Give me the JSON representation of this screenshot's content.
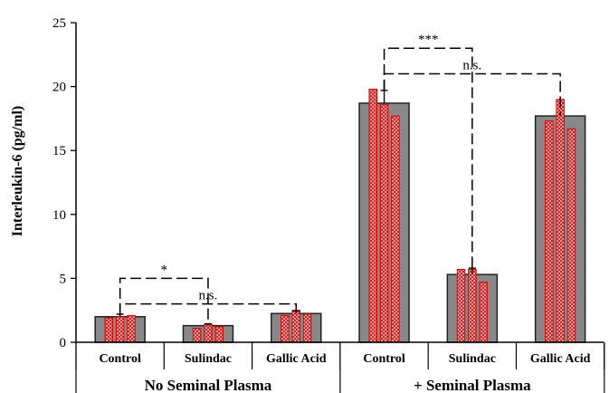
{
  "chart_data": {
    "type": "bar",
    "ylabel": "Interleukin-6 (pg/ml)",
    "ylim": [
      0,
      25
    ],
    "yticks": [
      0,
      5,
      10,
      15,
      20,
      25
    ],
    "grid": false,
    "groups": [
      {
        "label": "No Seminal Plasma",
        "categories": [
          {
            "label": "Control",
            "mean": 2.0,
            "error": 0.2,
            "replicates": [
              1.9,
              2.0,
              2.1
            ]
          },
          {
            "label": "Sulindac",
            "mean": 1.3,
            "error": 0.15,
            "replicates": [
              1.1,
              1.4,
              1.2
            ]
          },
          {
            "label": "Gallic Acid",
            "mean": 2.25,
            "error": 0.2,
            "replicates": [
              2.1,
              2.5,
              2.2
            ]
          }
        ]
      },
      {
        "label": "+ Seminal Plasma",
        "categories": [
          {
            "label": "Control",
            "mean": 18.7,
            "error": 1.0,
            "replicates": [
              19.8,
              18.6,
              17.7
            ]
          },
          {
            "label": "Sulindac",
            "mean": 5.3,
            "error": 0.5,
            "replicates": [
              5.7,
              5.7,
              4.7
            ]
          },
          {
            "label": "Gallic Acid",
            "mean": 17.7,
            "error": 0.0,
            "replicates": [
              17.3,
              19.0,
              16.7
            ]
          }
        ]
      }
    ],
    "comparisons": [
      {
        "from": [
          0,
          0
        ],
        "to": [
          0,
          1
        ],
        "label": "*",
        "y": 5.0
      },
      {
        "from": [
          0,
          0
        ],
        "to": [
          0,
          2
        ],
        "label": "n.s.",
        "y": 3.0
      },
      {
        "from": [
          1,
          0
        ],
        "to": [
          1,
          1
        ],
        "label": "***",
        "y": 23.0
      },
      {
        "from": [
          1,
          0
        ],
        "to": [
          1,
          2
        ],
        "label": "n.s.",
        "y": 21.0
      }
    ],
    "colors": {
      "bar_fill": "#888888",
      "bar_stroke": "#222222",
      "replicate_fill": "#f2b8b8",
      "replicate_stroke": "#e00000",
      "axis": "#000000"
    }
  }
}
